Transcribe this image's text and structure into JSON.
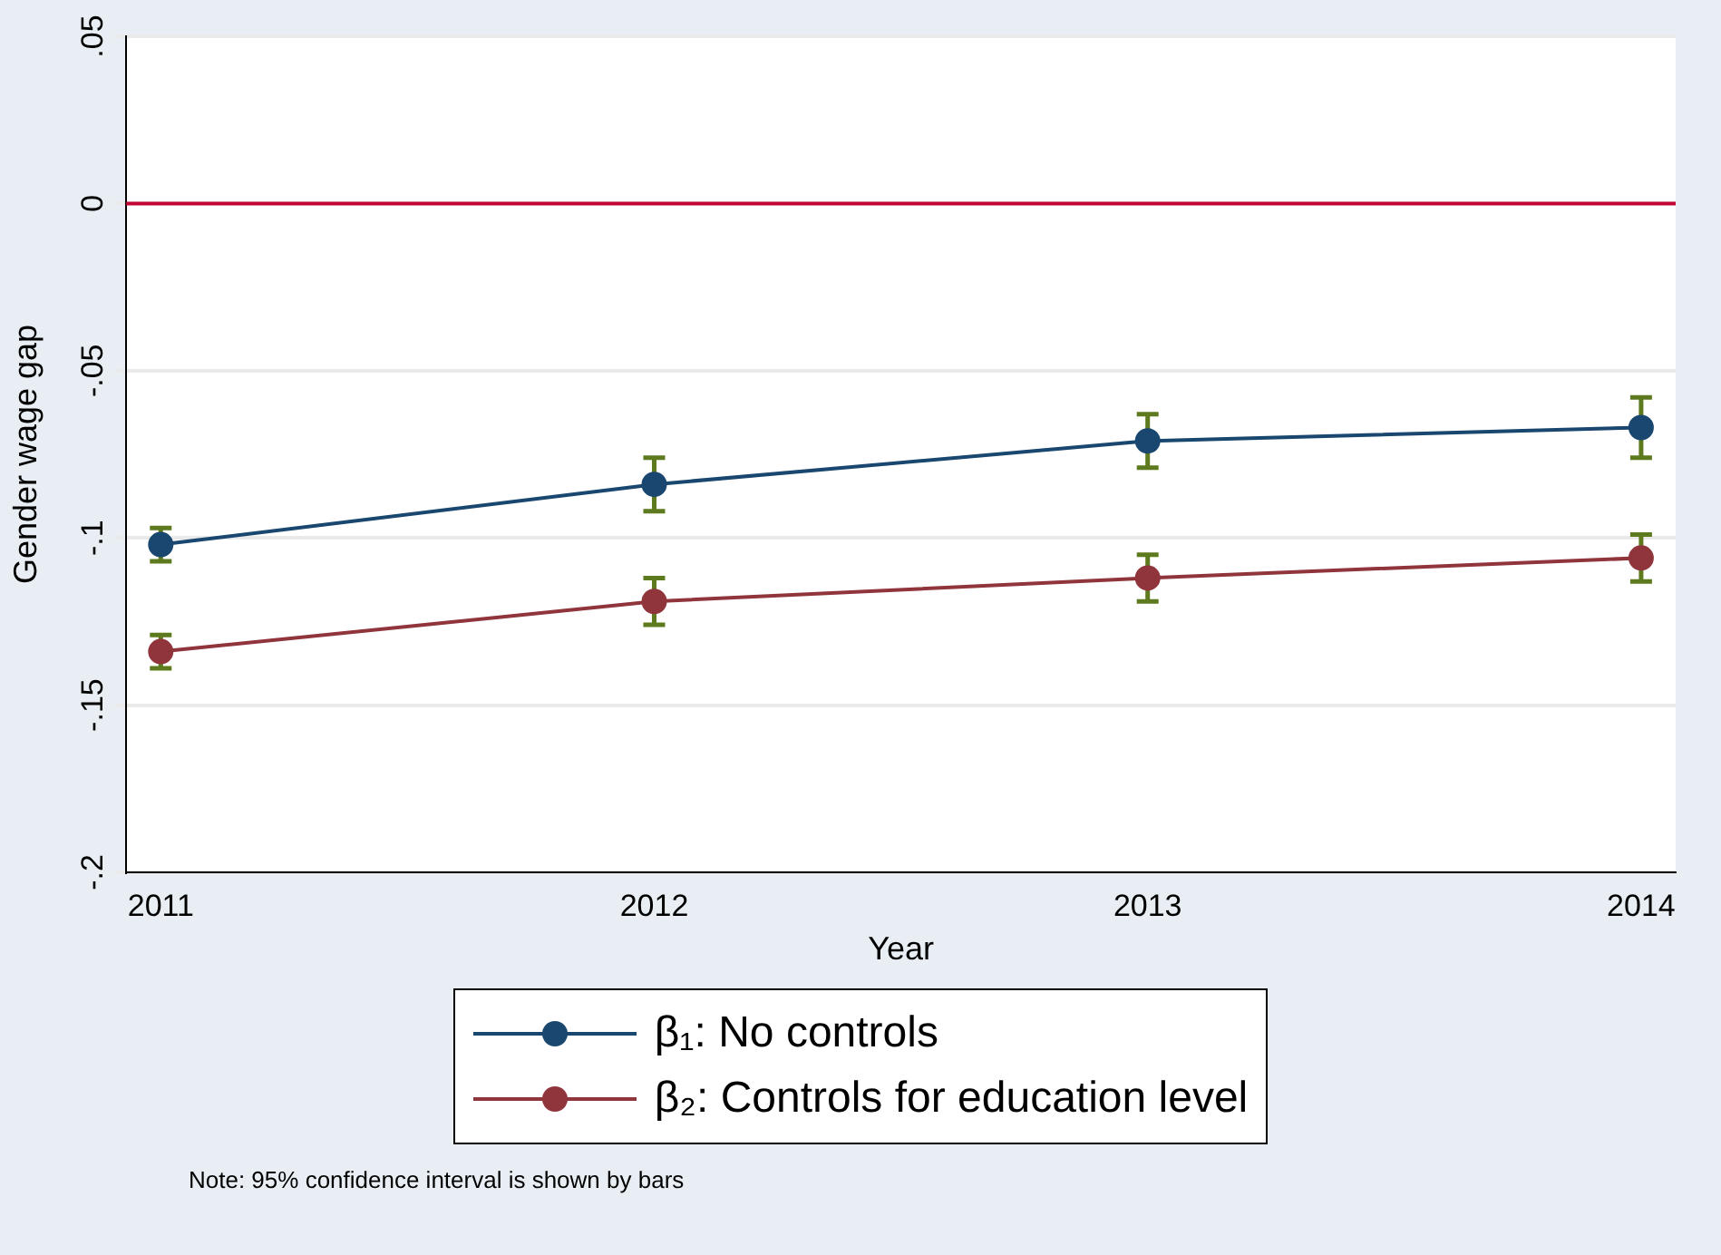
{
  "chart_data": {
    "type": "line",
    "xlabel": "Year",
    "ylabel": "Gender wage gap",
    "x": [
      2011,
      2012,
      2013,
      2014
    ],
    "series": [
      {
        "name": "β₁: No controls",
        "color": "#1a476f",
        "values": [
          -0.102,
          -0.084,
          -0.071,
          -0.067
        ],
        "errors": [
          0.005,
          0.008,
          0.008,
          0.009
        ]
      },
      {
        "name": "β₂: Controls for education level",
        "color": "#90353b",
        "values": [
          -0.134,
          -0.119,
          -0.112,
          -0.106
        ],
        "errors": [
          0.005,
          0.007,
          0.007,
          0.007
        ]
      }
    ],
    "xlim": [
      2010.93,
      2014.07
    ],
    "xticks": [
      2011,
      2012,
      2013,
      2014
    ],
    "ylim": [
      -0.2,
      0.05
    ],
    "yticks": [
      {
        "value": -0.2,
        "label": "-.2"
      },
      {
        "value": -0.15,
        "label": "-.15"
      },
      {
        "value": -0.1,
        "label": "-.1"
      },
      {
        "value": -0.05,
        "label": "-.05"
      },
      {
        "value": 0,
        "label": "0"
      },
      {
        "value": 0.05,
        "label": ".05"
      }
    ],
    "ref_lines": [
      {
        "axis": "y",
        "value": 0,
        "color": "#c10534"
      }
    ],
    "grid": "y",
    "legend": "bottom",
    "marker": "circle",
    "line_style": "solid",
    "annotations": [
      "Note: 95% confidence interval is shown by bars"
    ]
  }
}
